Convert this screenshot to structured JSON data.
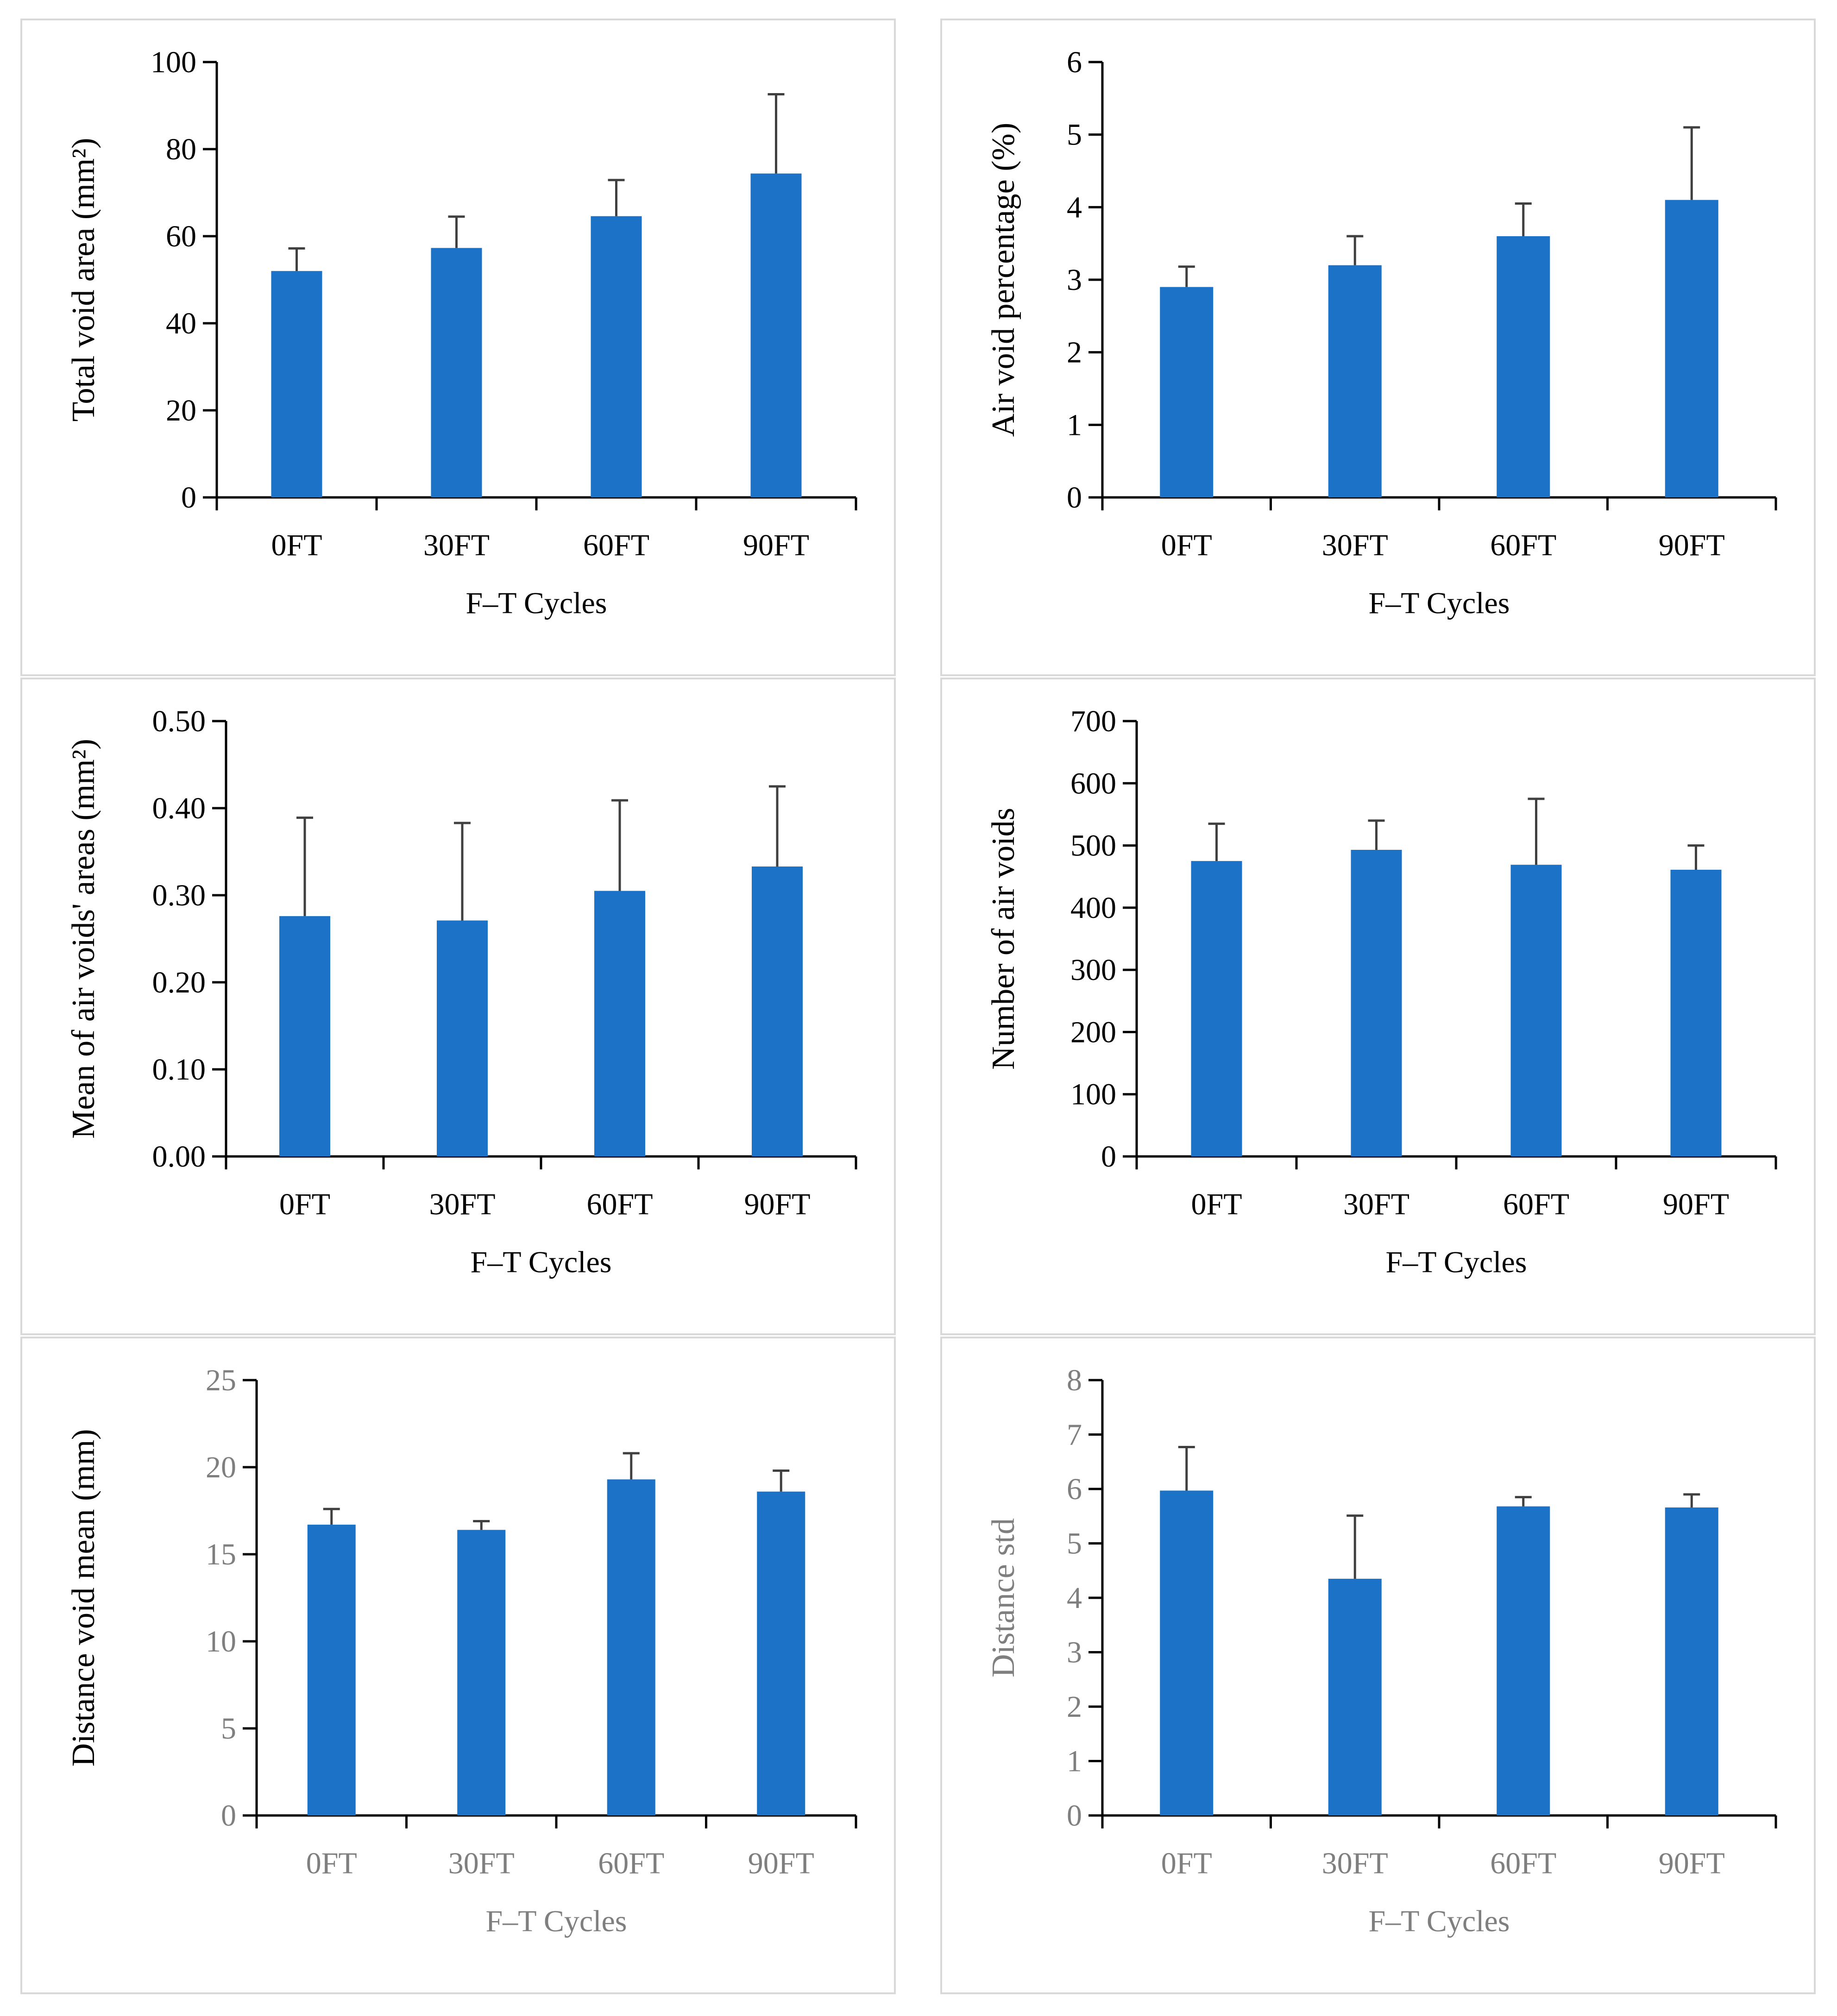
{
  "text_color_dark": "#000000",
  "text_color_grey": "#7f7f7f",
  "bar_color": "#1b72c6",
  "chart_data": [
    {
      "id": "total-void-area",
      "type": "bar",
      "categories": [
        "0FT",
        "30FT",
        "60FT",
        "90FT"
      ],
      "values": [
        52,
        57.3,
        64.6,
        74.4
      ],
      "errors": [
        5.2,
        7.2,
        8.3,
        18.2
      ],
      "ylabel": "Total void area (mm²)",
      "xlabel": "F–T Cycles",
      "ylim": [
        0,
        100
      ],
      "yticks": [
        "0",
        "20",
        "40",
        "60",
        "80",
        "100"
      ],
      "tick_values": [
        0,
        20,
        40,
        60,
        80,
        100
      ],
      "text_tone": "dark"
    },
    {
      "id": "air-void-percentage",
      "type": "bar",
      "categories": [
        "0FT",
        "30FT",
        "60FT",
        "90FT"
      ],
      "values": [
        2.9,
        3.2,
        3.6,
        4.1
      ],
      "errors": [
        0.28,
        0.4,
        0.45,
        1.0
      ],
      "ylabel": "Air void percentage (%)",
      "xlabel": "F–T Cycles",
      "ylim": [
        0,
        6
      ],
      "yticks": [
        "0",
        "1",
        "2",
        "3",
        "4",
        "5",
        "6"
      ],
      "tick_values": [
        0,
        1,
        2,
        3,
        4,
        5,
        6
      ],
      "text_tone": "dark"
    },
    {
      "id": "mean-air-void-area",
      "type": "bar",
      "categories": [
        "0FT",
        "30FT",
        "60FT",
        "90FT"
      ],
      "values": [
        0.276,
        0.271,
        0.305,
        0.333
      ],
      "errors": [
        0.113,
        0.112,
        0.104,
        0.092
      ],
      "ylabel": "Mean of air voids' areas (mm²)",
      "xlabel": "F–T Cycles",
      "ylim": [
        0,
        0.5
      ],
      "yticks": [
        "0.00",
        "0.10",
        "0.20",
        "0.30",
        "0.40",
        "0.50"
      ],
      "tick_values": [
        0,
        0.1,
        0.2,
        0.3,
        0.4,
        0.5
      ],
      "text_tone": "dark"
    },
    {
      "id": "number-of-air-voids",
      "type": "bar",
      "categories": [
        "0FT",
        "30FT",
        "60FT",
        "90FT"
      ],
      "values": [
        475,
        493,
        469,
        461
      ],
      "errors": [
        60,
        47,
        106,
        39
      ],
      "ylabel": "Number of air voids",
      "xlabel": "F–T Cycles",
      "ylim": [
        0,
        700
      ],
      "yticks": [
        "0",
        "100",
        "200",
        "300",
        "400",
        "500",
        "600",
        "700"
      ],
      "tick_values": [
        0,
        100,
        200,
        300,
        400,
        500,
        600,
        700
      ],
      "text_tone": "dark"
    },
    {
      "id": "distance-void-mean",
      "type": "bar",
      "categories": [
        "0FT",
        "30FT",
        "60FT",
        "90FT"
      ],
      "values": [
        16.7,
        16.4,
        19.3,
        18.6
      ],
      "errors": [
        0.9,
        0.5,
        1.5,
        1.2
      ],
      "ylabel": "Distance void mean (mm)",
      "xlabel": "F–T Cycles",
      "ylim": [
        0,
        25
      ],
      "yticks": [
        "0",
        "5",
        "10",
        "15",
        "20",
        "25"
      ],
      "tick_values": [
        0,
        5,
        10,
        15,
        20,
        25
      ],
      "text_tone": "grey",
      "ylabel_tone": "dark"
    },
    {
      "id": "distance-std",
      "type": "bar",
      "categories": [
        "0FT",
        "30FT",
        "60FT",
        "90FT"
      ],
      "values": [
        5.97,
        4.35,
        5.68,
        5.66
      ],
      "errors": [
        0.8,
        1.16,
        0.17,
        0.24
      ],
      "ylabel": "Distance std",
      "xlabel": "F–T Cycles",
      "ylim": [
        0,
        8
      ],
      "yticks": [
        "0",
        "1",
        "2",
        "3",
        "4",
        "5",
        "6",
        "7",
        "8"
      ],
      "tick_values": [
        0,
        1,
        2,
        3,
        4,
        5,
        6,
        7,
        8
      ],
      "text_tone": "grey",
      "ylabel_tone": "grey"
    }
  ]
}
